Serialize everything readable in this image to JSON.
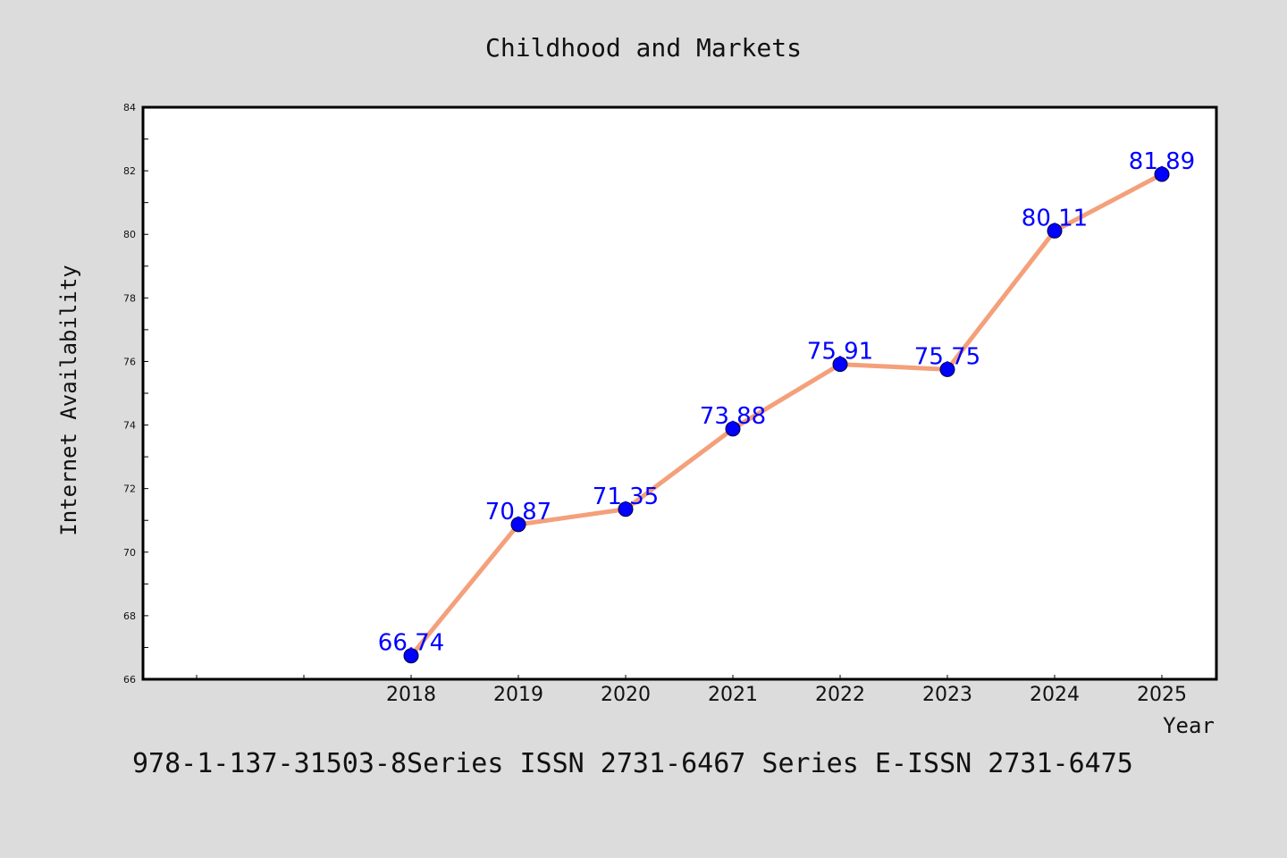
{
  "chart_data": {
    "type": "line",
    "title": "Childhood and Markets",
    "xlabel": "Year",
    "ylabel": "Internet Availability",
    "categories": [
      "2018",
      "2019",
      "2020",
      "2021",
      "2022",
      "2023",
      "2024",
      "2025"
    ],
    "series": [
      {
        "values": [
          66.74,
          70.87,
          71.35,
          73.88,
          75.91,
          75.75,
          80.11,
          81.89
        ]
      }
    ],
    "data_labels": [
      "66.74",
      "70.87",
      "71.35",
      "73.88",
      "75.91",
      "75.75",
      "80.11",
      "81.89"
    ],
    "ylim": [
      66,
      84
    ],
    "y_ticks": [
      "66",
      "68",
      "70",
      "72",
      "74",
      "76",
      "78",
      "80",
      "82",
      "84"
    ],
    "grid": false,
    "colors": {
      "line": "#f4a07a",
      "marker": "#0000ff",
      "label": "#0000ff",
      "background": "#dcdcdc",
      "plot_background": "#ffffff"
    }
  },
  "footer": "978-1-137-31503-8Series ISSN 2731-6467 Series E-ISSN 2731-6475"
}
